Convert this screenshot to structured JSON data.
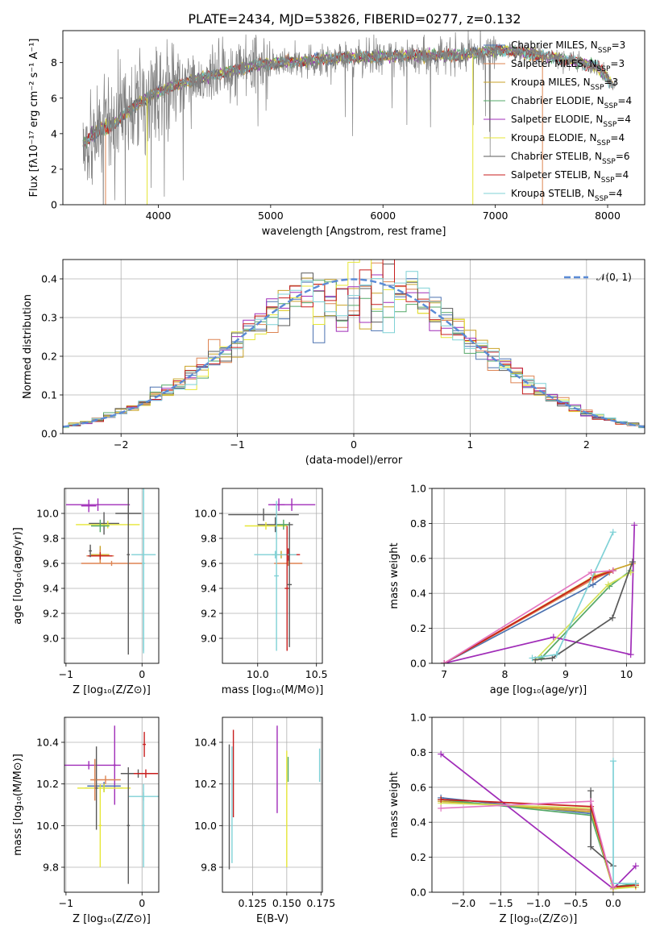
{
  "chart_data": [
    {
      "id": "spectrum",
      "type": "line",
      "title": "PLATE=2434, MJD=53826, FIBERID=0277, z=0.132",
      "xlabel": "wavelength [Angstrom, rest frame]",
      "ylabel": "Flux [f_λ10^-17 erg cm^-2 s^-1 A^-1]",
      "xlim": [
        3150,
        8330
      ],
      "ylim": [
        0,
        9.8
      ],
      "xticks": [
        4000,
        5000,
        6000,
        7000,
        8000
      ],
      "yticks": [
        0,
        2,
        4,
        6,
        8
      ],
      "legend": "top-right",
      "grid": false,
      "series": [
        {
          "name": "Chabrier MILES, N_SSP=3",
          "color": "#4c72b0"
        },
        {
          "name": "Salpeter MILES, N_SSP=3",
          "color": "#dd8452"
        },
        {
          "name": "Kroupa MILES, N_SSP=3",
          "color": "#c9a227"
        },
        {
          "name": "Chabrier ELODIE, N_SSP=4",
          "color": "#55a868"
        },
        {
          "name": "Salpeter ELODIE, N_SSP=4",
          "color": "#a02cb8"
        },
        {
          "name": "Kroupa ELODIE, N_SSP=4",
          "color": "#e6e636"
        },
        {
          "name": "Chabrier STELIB, N_SSP=6",
          "color": "#595959"
        },
        {
          "name": "Salpeter STELIB, N_SSP=4",
          "color": "#c81e1e"
        },
        {
          "name": "Kroupa STELIB, N_SSP=4",
          "color": "#7fd1d6"
        }
      ],
      "data_color": "#808080",
      "continuum": {
        "x": [
          3330,
          3450,
          3600,
          3700,
          3800,
          3950,
          4100,
          4300,
          4500,
          4700,
          4900,
          5100,
          5300,
          5500,
          5700,
          5900,
          6100,
          6300,
          6500,
          6700,
          6900,
          7100,
          7300,
          7500,
          7700,
          7900,
          8050
        ],
        "y": [
          3.4,
          4.1,
          4.5,
          5.1,
          5.6,
          6.2,
          6.6,
          7.0,
          7.3,
          7.6,
          7.9,
          8.0,
          8.1,
          8.2,
          8.3,
          8.3,
          8.4,
          8.4,
          8.4,
          8.4,
          8.6,
          8.7,
          8.5,
          8.3,
          8.1,
          7.8,
          6.7
        ]
      },
      "dropouts": [
        3530,
        3900,
        6800,
        7420
      ]
    },
    {
      "id": "residuals",
      "type": "histogram",
      "xlabel": "(data-model)/error",
      "ylabel": "Normed distribution",
      "xlim": [
        -2.5,
        2.5
      ],
      "ylim": [
        0,
        0.45
      ],
      "xticks": [
        -2,
        -1,
        0,
        1,
        2
      ],
      "yticks": [
        0.0,
        0.1,
        0.2,
        0.3,
        0.4
      ],
      "grid": true,
      "legend": "top-right",
      "reference": {
        "name": "𝒩(0, 1)",
        "color": "#5b8bd6",
        "mean": 0,
        "sigma": 1
      }
    },
    {
      "id": "age_vs_Z",
      "type": "errorbar",
      "xlabel": "Z [log10(Z/Z_sun)]",
      "ylabel": "age [log10(age/yr)]",
      "xlim": [
        -1.02,
        0.22
      ],
      "ylim": [
        8.8,
        10.2
      ],
      "xticks": [
        -1,
        0
      ],
      "yticks": [
        9.0,
        9.2,
        9.4,
        9.6,
        9.8,
        10.0
      ],
      "grid": true,
      "points": [
        {
          "x": -0.58,
          "y": 10.07,
          "xerr": 0.42,
          "yerr": 0.05,
          "series": 4
        },
        {
          "x": -0.7,
          "y": 10.06,
          "xerr": 0.1,
          "yerr": 0.05,
          "series": 4
        },
        {
          "x": -0.18,
          "y": 10.0,
          "xerr": 0.17,
          "yerr": 0.05,
          "series": 6
        },
        {
          "x": -0.5,
          "y": 9.92,
          "xerr": 0.2,
          "yerr": 0.09,
          "series": 6
        },
        {
          "x": -0.45,
          "y": 9.91,
          "xerr": 0.42,
          "yerr": 0.03,
          "series": 5
        },
        {
          "x": -0.55,
          "y": 9.9,
          "xerr": 0.12,
          "yerr": 0.05,
          "series": 3
        },
        {
          "x": -0.55,
          "y": 9.67,
          "xerr": 0.12,
          "yerr": 0.07,
          "series": 2
        },
        {
          "x": -0.55,
          "y": 9.66,
          "xerr": 0.18,
          "yerr": 0.05,
          "series": 1
        },
        {
          "x": -0.55,
          "y": 9.66,
          "xerr": 0.16,
          "yerr": 0.03,
          "series": 7
        },
        {
          "x": -0.4,
          "y": 9.6,
          "xerr": 0.4,
          "yerr": 0.02,
          "series": 1
        },
        {
          "x": 0.02,
          "y": 9.67,
          "xerr": 0.16,
          "yerr": 0.77,
          "series": 8
        },
        {
          "x": 0.02,
          "y": 9.6,
          "xerr": 0.02,
          "yerr": 0.72,
          "series": 8
        },
        {
          "x": -0.18,
          "y": 9.67,
          "xerr": 0.02,
          "yerr": 0.8,
          "series": 6
        },
        {
          "x": -0.68,
          "y": 9.7,
          "xerr": 0.02,
          "yerr": 0.05,
          "series": 6
        }
      ]
    },
    {
      "id": "age_vs_mass",
      "type": "errorbar",
      "xlabel": "mass [log10(M/M_sun)]",
      "xlim": [
        9.7,
        10.55
      ],
      "ylim": [
        8.8,
        10.2
      ],
      "xticks": [
        10.0,
        10.5
      ],
      "yticks": [
        9.0,
        9.2,
        9.4,
        9.6,
        9.8,
        10.0
      ],
      "grid": true,
      "points": [
        {
          "x": 10.29,
          "y": 10.07,
          "xerr": 0.2,
          "yerr": 0.05,
          "series": 4
        },
        {
          "x": 10.18,
          "y": 10.07,
          "xerr": 0.05,
          "yerr": 0.05,
          "series": 4
        },
        {
          "x": 10.05,
          "y": 9.99,
          "xerr": 0.3,
          "yerr": 0.05,
          "series": 6
        },
        {
          "x": 10.15,
          "y": 9.91,
          "xerr": 0.15,
          "yerr": 0.06,
          "series": 6
        },
        {
          "x": 10.07,
          "y": 9.9,
          "xerr": 0.18,
          "yerr": 0.03,
          "series": 5
        },
        {
          "x": 10.22,
          "y": 9.91,
          "xerr": 0.05,
          "yerr": 0.04,
          "series": 3
        },
        {
          "x": 10.26,
          "y": 9.67,
          "xerr": 0.1,
          "yerr": 0.05,
          "series": 7
        },
        {
          "x": 10.2,
          "y": 9.67,
          "xerr": 0.08,
          "yerr": 0.03,
          "series": 2
        },
        {
          "x": 10.15,
          "y": 9.67,
          "xerr": 0.18,
          "yerr": 0.03,
          "series": 8
        },
        {
          "x": 10.26,
          "y": 9.6,
          "xerr": 0.12,
          "yerr": 0.02,
          "series": 1
        },
        {
          "x": 10.25,
          "y": 9.4,
          "xerr": 0.02,
          "yerr": 0.5,
          "series": 7
        },
        {
          "x": 10.27,
          "y": 9.43,
          "xerr": 0.02,
          "yerr": 0.5,
          "series": 6
        },
        {
          "x": 10.16,
          "y": 9.5,
          "xerr": 0.02,
          "yerr": 0.6,
          "series": 8
        }
      ]
    },
    {
      "id": "weight_vs_age",
      "type": "line",
      "xlabel": "age [log10(age/yr)]",
      "ylabel": "mass weight",
      "xlim": [
        6.8,
        10.3
      ],
      "ylim": [
        0,
        1.0
      ],
      "xticks": [
        7,
        8,
        9,
        10
      ],
      "yticks": [
        0.0,
        0.2,
        0.4,
        0.6,
        0.8,
        1.0
      ],
      "grid": true,
      "lines": [
        {
          "series": 0,
          "x": [
            7.0,
            9.45,
            9.78
          ],
          "y": [
            0.0,
            0.45,
            0.53
          ]
        },
        {
          "series": 1,
          "x": [
            7.0,
            9.45,
            9.72
          ],
          "y": [
            0.0,
            0.48,
            0.52
          ]
        },
        {
          "series": 2,
          "x": [
            7.0,
            9.48,
            10.1
          ],
          "y": [
            0.0,
            0.5,
            0.57
          ]
        },
        {
          "series": 3,
          "x": [
            8.6,
            9.72,
            10.07
          ],
          "y": [
            0.03,
            0.44,
            0.53
          ]
        },
        {
          "series": 4,
          "x": [
            7.0,
            8.8,
            10.07,
            10.13
          ],
          "y": [
            0.0,
            0.15,
            0.05,
            0.79
          ]
        },
        {
          "series": 5,
          "x": [
            8.5,
            9.7,
            10.07
          ],
          "y": [
            0.02,
            0.45,
            0.52
          ]
        },
        {
          "series": 6,
          "x": [
            8.5,
            8.78,
            9.77,
            10.1
          ],
          "y": [
            0.02,
            0.03,
            0.26,
            0.58
          ]
        },
        {
          "series": 7,
          "x": [
            7.0,
            9.45,
            9.78
          ],
          "y": [
            0.0,
            0.49,
            0.53
          ]
        },
        {
          "series": 8,
          "x": [
            8.45,
            8.85,
            9.78
          ],
          "y": [
            0.03,
            0.05,
            0.75
          ]
        },
        {
          "series": 9,
          "x": [
            7.0,
            9.42,
            9.78
          ],
          "y": [
            0.0,
            0.52,
            0.53
          ]
        }
      ]
    },
    {
      "id": "mass_vs_Z",
      "type": "errorbar",
      "xlabel": "Z [log10(Z/Z_sun)]",
      "ylabel": "mass [log10(M/M_sun)]",
      "xlim": [
        -1.02,
        0.22
      ],
      "ylim": [
        9.68,
        10.52
      ],
      "xticks": [
        -1,
        0
      ],
      "yticks": [
        9.8,
        10.0,
        10.2,
        10.4
      ],
      "grid": true,
      "points": [
        {
          "x": -0.7,
          "y": 10.29,
          "xerr": 0.42,
          "yerr": 0.02,
          "series": 4
        },
        {
          "x": -0.36,
          "y": 10.29,
          "xerr": 0.02,
          "yerr": 0.19,
          "series": 4
        },
        {
          "x": -0.05,
          "y": 10.25,
          "xerr": 0.23,
          "yerr": 0.02,
          "series": 6
        },
        {
          "x": 0.05,
          "y": 10.25,
          "xerr": 0.16,
          "yerr": 0.02,
          "series": 7
        },
        {
          "x": 0.02,
          "y": 10.14,
          "xerr": 0.2,
          "yerr": 0.02,
          "series": 8
        },
        {
          "x": -0.48,
          "y": 10.22,
          "xerr": 0.2,
          "yerr": 0.02,
          "series": 1
        },
        {
          "x": -0.5,
          "y": 10.19,
          "xerr": 0.22,
          "yerr": 0.02,
          "series": 0
        },
        {
          "x": -0.5,
          "y": 10.18,
          "xerr": 0.25,
          "yerr": 0.02,
          "series": 3
        },
        {
          "x": -0.5,
          "y": 10.18,
          "xerr": 0.35,
          "yerr": 0.02,
          "series": 5
        },
        {
          "x": -0.18,
          "y": 10.0,
          "xerr": 0.02,
          "yerr": 0.28,
          "series": 6
        },
        {
          "x": 0.02,
          "y": 10.0,
          "xerr": 0.02,
          "yerr": 0.2,
          "series": 8
        },
        {
          "x": -0.6,
          "y": 10.18,
          "xerr": 0.02,
          "yerr": 0.2,
          "series": 6
        },
        {
          "x": -0.55,
          "y": 10.0,
          "xerr": 0.02,
          "yerr": 0.2,
          "series": 5
        },
        {
          "x": 0.03,
          "y": 10.39,
          "xerr": 0.02,
          "yerr": 0.06,
          "series": 7
        },
        {
          "x": -0.62,
          "y": 10.22,
          "xerr": 0.02,
          "yerr": 0.1,
          "series": 1
        }
      ]
    },
    {
      "id": "mass_vs_EBV",
      "type": "errorbar",
      "xlabel": "E(B-V)",
      "xlim": [
        0.103,
        0.176
      ],
      "ylim": [
        9.68,
        10.52
      ],
      "xticks": [
        0.125,
        0.15,
        0.175
      ],
      "yticks": [
        9.8,
        10.0,
        10.2,
        10.4
      ],
      "grid": true,
      "points": [
        {
          "x": 0.108,
          "y": 10.09,
          "xerr": 0,
          "yerr": 0.3,
          "series": 6
        },
        {
          "x": 0.111,
          "y": 10.25,
          "xerr": 0,
          "yerr": 0.21,
          "series": 7
        },
        {
          "x": 0.11,
          "y": 10.1,
          "xerr": 0,
          "yerr": 0.28,
          "series": 8
        },
        {
          "x": 0.143,
          "y": 10.27,
          "xerr": 0,
          "yerr": 0.21,
          "series": 4
        },
        {
          "x": 0.15,
          "y": 10.08,
          "xerr": 0,
          "yerr": 0.28,
          "series": 5
        },
        {
          "x": 0.151,
          "y": 10.27,
          "xerr": 0,
          "yerr": 0.06,
          "series": 3
        },
        {
          "x": 0.174,
          "y": 10.29,
          "xerr": 0,
          "yerr": 0.08,
          "series": 9
        }
      ]
    },
    {
      "id": "weight_vs_Z",
      "type": "line",
      "xlabel": "Z [log10(Z/Z_sun)]",
      "ylabel": "mass weight",
      "xlim": [
        -2.42,
        0.42
      ],
      "ylim": [
        0,
        1.0
      ],
      "xticks": [
        -2.0,
        -1.5,
        -1.0,
        -0.5,
        0.0
      ],
      "yticks": [
        0.0,
        0.2,
        0.4,
        0.6,
        0.8,
        1.0
      ],
      "grid": true,
      "lines": [
        {
          "series": 0,
          "x": [
            -2.3,
            -0.3,
            0.0,
            0.3
          ],
          "y": [
            0.54,
            0.45,
            0.03,
            0.05
          ]
        },
        {
          "series": 1,
          "x": [
            -2.3,
            -0.3,
            0.0,
            0.3
          ],
          "y": [
            0.52,
            0.47,
            0.03,
            0.04
          ]
        },
        {
          "series": 2,
          "x": [
            -2.3,
            -0.3,
            0.0,
            0.3
          ],
          "y": [
            0.52,
            0.46,
            0.02,
            0.04
          ]
        },
        {
          "series": 3,
          "x": [
            -2.3,
            -0.3,
            0.0,
            0.3
          ],
          "y": [
            0.53,
            0.44,
            0.03,
            0.05
          ]
        },
        {
          "series": 4,
          "x": [
            -2.3,
            0.0,
            0.3
          ],
          "y": [
            0.79,
            0.02,
            0.15
          ]
        },
        {
          "series": 5,
          "x": [
            -2.3,
            -0.3,
            0.0,
            0.3
          ],
          "y": [
            0.51,
            0.48,
            0.02,
            0.03
          ]
        },
        {
          "series": 6,
          "x": [
            -0.3,
            -0.3,
            0.0
          ],
          "y": [
            0.58,
            0.26,
            0.15
          ]
        },
        {
          "series": 7,
          "x": [
            -2.3,
            -0.3,
            0.0,
            0.3
          ],
          "y": [
            0.53,
            0.49,
            0.03,
            0.04
          ]
        },
        {
          "series": 8,
          "x": [
            0.0,
            0.0,
            0.3
          ],
          "y": [
            0.75,
            0.05,
            0.05
          ]
        },
        {
          "series": 9,
          "x": [
            -2.3,
            -0.3,
            0.0
          ],
          "y": [
            0.48,
            0.52,
            0.03
          ]
        }
      ]
    }
  ],
  "weight_palette": [
    "#4c72b0",
    "#dd8452",
    "#c9a227",
    "#55a868",
    "#a02cb8",
    "#d4e157",
    "#595959",
    "#c81e1e",
    "#7fd1d6",
    "#e377c2"
  ]
}
